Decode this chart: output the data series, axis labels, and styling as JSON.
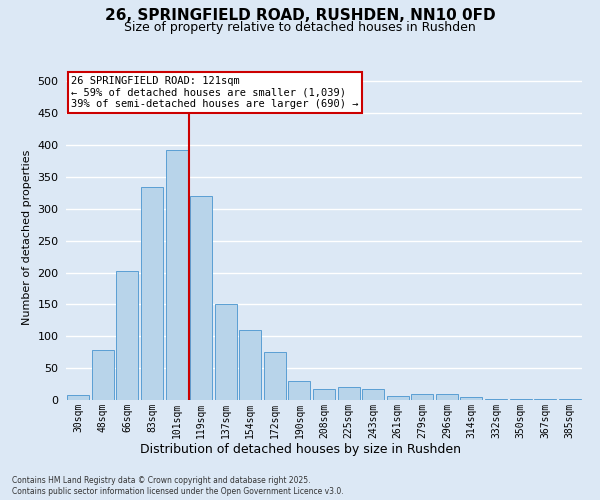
{
  "title": "26, SPRINGFIELD ROAD, RUSHDEN, NN10 0FD",
  "subtitle": "Size of property relative to detached houses in Rushden",
  "xlabel": "Distribution of detached houses by size in Rushden",
  "ylabel": "Number of detached properties",
  "bar_color": "#b8d4ea",
  "bar_edge_color": "#5a9fd4",
  "background_color": "#dce8f5",
  "grid_color": "#ffffff",
  "categories": [
    "30sqm",
    "48sqm",
    "66sqm",
    "83sqm",
    "101sqm",
    "119sqm",
    "137sqm",
    "154sqm",
    "172sqm",
    "190sqm",
    "208sqm",
    "225sqm",
    "243sqm",
    "261sqm",
    "279sqm",
    "296sqm",
    "314sqm",
    "332sqm",
    "350sqm",
    "367sqm",
    "385sqm"
  ],
  "values": [
    8,
    78,
    202,
    335,
    393,
    320,
    150,
    110,
    75,
    30,
    18,
    20,
    18,
    6,
    10,
    10,
    4,
    2,
    1,
    1,
    1
  ],
  "marker_bar_index": 4,
  "annotation_title": "26 SPRINGFIELD ROAD: 121sqm",
  "annotation_line1": "← 59% of detached houses are smaller (1,039)",
  "annotation_line2": "39% of semi-detached houses are larger (690) →",
  "annotation_box_bg": "#ffffff",
  "annotation_box_edge": "#cc0000",
  "marker_line_color": "#cc0000",
  "ylim": [
    0,
    510
  ],
  "yticks": [
    0,
    50,
    100,
    150,
    200,
    250,
    300,
    350,
    400,
    450,
    500
  ],
  "footnote1": "Contains HM Land Registry data © Crown copyright and database right 2025.",
  "footnote2": "Contains public sector information licensed under the Open Government Licence v3.0."
}
